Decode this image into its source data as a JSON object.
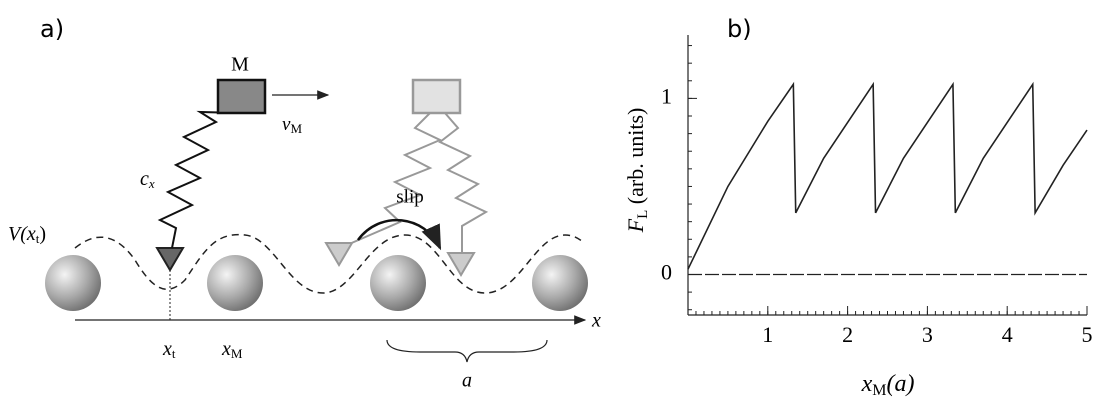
{
  "panel_a": {
    "label": "a)",
    "mass": "M",
    "velocity": {
      "main": "v",
      "sub": "M"
    },
    "spring": {
      "main": "c",
      "sub": "x"
    },
    "slip": "slip",
    "potential": {
      "main": "V(x",
      "sub": "t",
      "rest": ")"
    },
    "axis": "x",
    "tip_position": {
      "main": "x",
      "sub": "t"
    },
    "mass_position": {
      "main": "x",
      "sub": "M"
    },
    "lattice_constant": "a"
  },
  "chart_data": {
    "type": "line",
    "label": "b)",
    "x_label": {
      "main": "x",
      "sub": "M",
      "rest": "(a)"
    },
    "y_label": {
      "main": "F",
      "sub": "L",
      "rest": " (arb. units)"
    },
    "x": [
      0,
      0.5,
      1,
      1.32,
      1.35,
      1.7,
      2.32,
      2.35,
      2.7,
      3.32,
      3.35,
      3.7,
      4.32,
      4.35,
      4.7,
      5
    ],
    "series": [
      {
        "color": "#222222",
        "values": [
          0.03,
          0.5,
          0.87,
          1.08,
          0.35,
          0.66,
          1.08,
          0.35,
          0.66,
          1.08,
          0.35,
          0.66,
          1.08,
          0.35,
          0.62,
          0.82
        ]
      }
    ],
    "xlim": [
      0,
      5
    ],
    "ylim": [
      -0.23,
      1.36
    ],
    "xticks": [
      1,
      2,
      3,
      4,
      5
    ],
    "yticks": [
      0,
      1
    ],
    "zero_line": true
  }
}
